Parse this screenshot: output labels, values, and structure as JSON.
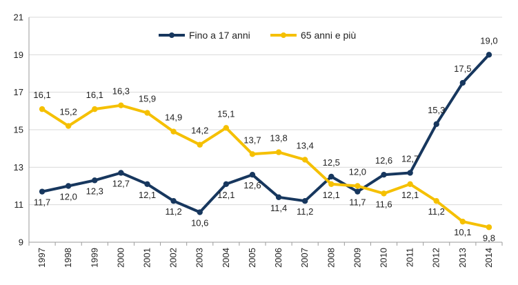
{
  "chart_data": {
    "type": "line",
    "title": "",
    "xlabel": "",
    "ylabel": "",
    "ylim": [
      9,
      21
    ],
    "yticks": [
      9,
      11,
      13,
      15,
      17,
      19,
      21
    ],
    "grid": "horizontal",
    "legend_position": "top-center",
    "categories": [
      "1997",
      "1998",
      "1999",
      "2000",
      "2001",
      "2002",
      "2003",
      "2004",
      "2005",
      "2006",
      "2007",
      "2008",
      "2009",
      "2010",
      "2011",
      "2012",
      "2013",
      "2014"
    ],
    "series": [
      {
        "name": "Fino a 17 anni",
        "color": "#17375e",
        "values": [
          11.7,
          12.0,
          12.3,
          12.7,
          12.1,
          11.2,
          10.6,
          12.1,
          12.6,
          11.4,
          11.2,
          12.5,
          11.7,
          12.6,
          12.7,
          15.3,
          17.5,
          19.0
        ],
        "labels": [
          "11,7",
          "12,0",
          "12,3",
          "12,7",
          "12,1",
          "11,2",
          "10,6",
          "12,1",
          "12,6",
          "11,4",
          "11,2",
          "12,5",
          "11,7",
          "12,6",
          "12,7",
          "15,3",
          "17,5",
          "19,0"
        ]
      },
      {
        "name": "65 anni e più",
        "color": "#f5c000",
        "values": [
          16.1,
          15.2,
          16.1,
          16.3,
          15.9,
          14.9,
          14.2,
          15.1,
          13.7,
          13.8,
          13.4,
          12.1,
          12.0,
          11.6,
          12.1,
          11.2,
          10.1,
          9.8
        ],
        "labels": [
          "16,1",
          "15,2",
          "16,1",
          "16,3",
          "15,9",
          "14,9",
          "14,2",
          "15,1",
          "13,7",
          "13,8",
          "13,4",
          "12,1",
          "12,0",
          "11,6",
          "12,1",
          "11,2",
          "10,1",
          "9,8"
        ]
      }
    ]
  }
}
